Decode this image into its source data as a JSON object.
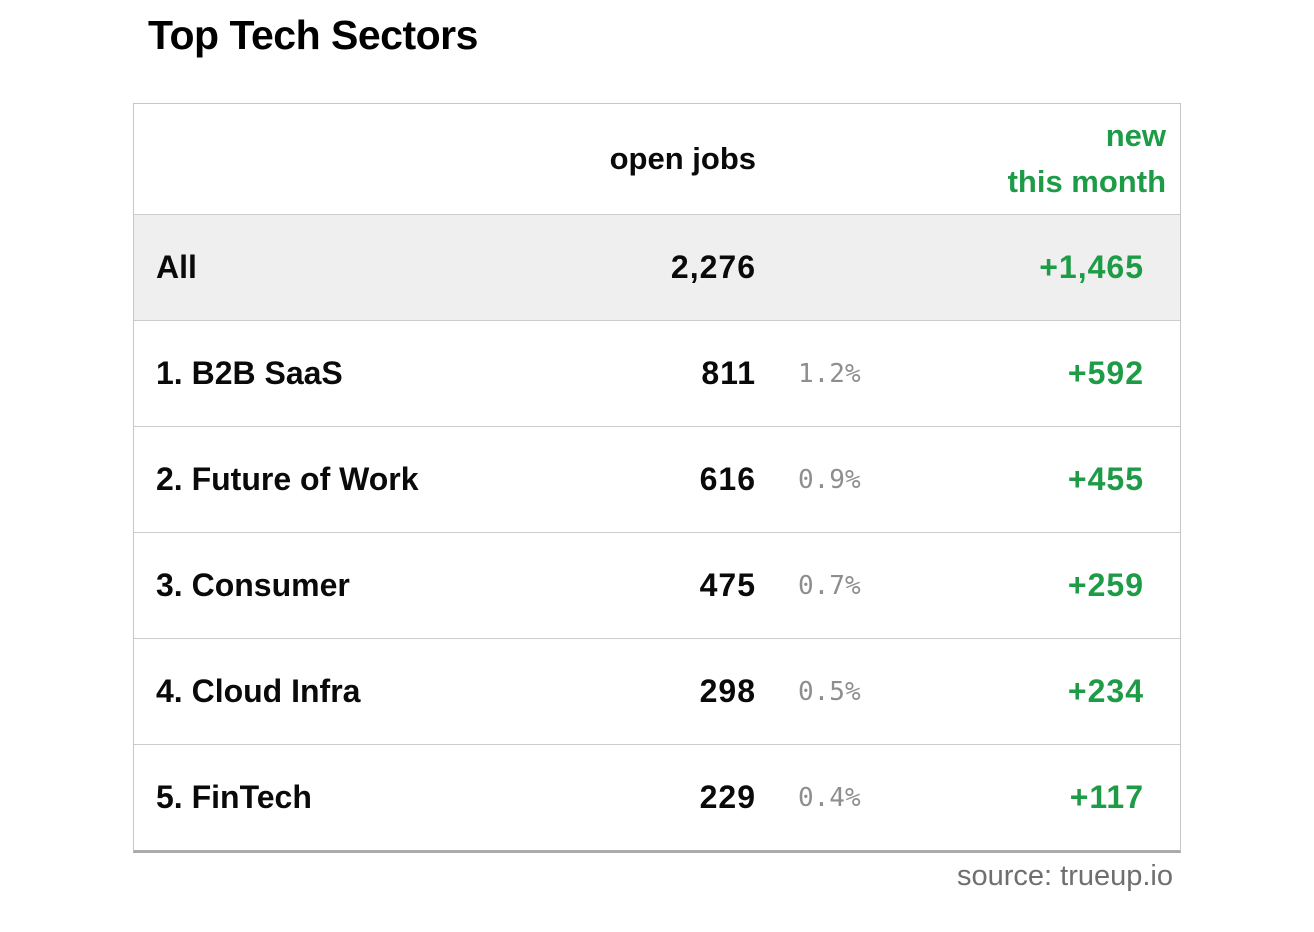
{
  "title": "Top Tech Sectors",
  "source": "source: trueup.io",
  "colors": {
    "accent_green": "#1e9b46",
    "pct_gray": "#8e8e8e",
    "highlight_row_bg": "#efefef",
    "border_gray": "#c6c6c6"
  },
  "chart_data": {
    "type": "table",
    "title": "Top Tech Sectors",
    "columns": {
      "sector_label": "",
      "open_jobs_label": "open jobs",
      "pct_label": "",
      "new_label_line1": "new",
      "new_label_line2": "this month"
    },
    "rows": [
      {
        "sector": "All",
        "open_jobs": "2,276",
        "pct": "",
        "new": "+1,465"
      },
      {
        "sector": "1. B2B SaaS",
        "open_jobs": "811",
        "pct": "1.2%",
        "new": "+592"
      },
      {
        "sector": "2. Future of Work",
        "open_jobs": "616",
        "pct": "0.9%",
        "new": "+455"
      },
      {
        "sector": "3. Consumer",
        "open_jobs": "475",
        "pct": "0.7%",
        "new": "+259"
      },
      {
        "sector": "4. Cloud Infra",
        "open_jobs": "298",
        "pct": "0.5%",
        "new": "+234"
      },
      {
        "sector": "5. FinTech",
        "open_jobs": "229",
        "pct": "0.4%",
        "new": "+117"
      }
    ],
    "source": "source: trueup.io"
  }
}
